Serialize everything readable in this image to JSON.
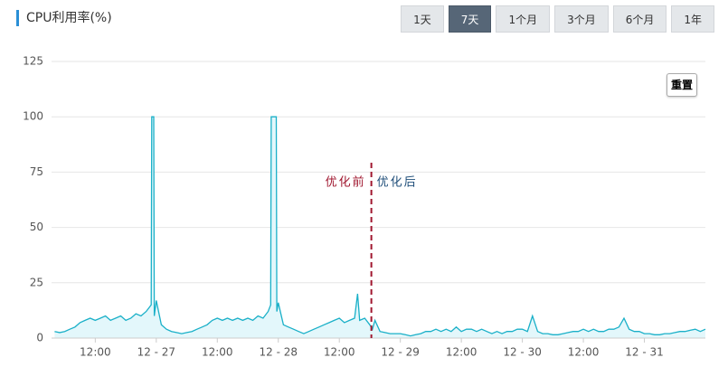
{
  "header": {
    "title": "CPU利用率(%)",
    "ranges": [
      "1天",
      "7天",
      "1个月",
      "3个月",
      "6个月",
      "1年"
    ],
    "active_range": 1,
    "reset": "重置"
  },
  "chart_data": {
    "type": "line",
    "color": "#1ab0c8",
    "fill": "#e3f7fb",
    "ylim": [
      0,
      125
    ],
    "yticks": [
      0,
      25,
      50,
      75,
      100,
      125
    ],
    "grid": true,
    "xlim": [
      -20.6,
      108
    ],
    "xticks": [
      {
        "value": -12,
        "label": "12:00"
      },
      {
        "value": 0,
        "label": "12 - 27"
      },
      {
        "value": 12,
        "label": "12:00"
      },
      {
        "value": 24,
        "label": "12 - 28"
      },
      {
        "value": 36,
        "label": "12:00"
      },
      {
        "value": 48,
        "label": "12 - 29"
      },
      {
        "value": 60,
        "label": "12:00"
      },
      {
        "value": 72,
        "label": "12 - 30"
      },
      {
        "value": 84,
        "label": "12:00"
      },
      {
        "value": 96,
        "label": "12 - 31"
      }
    ],
    "divider_x": 42.3,
    "annotations": [
      "优化前",
      "优化后"
    ],
    "x": [
      -20,
      -19,
      -18,
      -17,
      -16,
      -15,
      -14,
      -13,
      -12,
      -11,
      -10,
      -9,
      -8,
      -7,
      -6,
      -5,
      -4,
      -3,
      -2,
      -1,
      -0.9,
      -0.5,
      -0.4,
      0,
      1,
      2,
      3,
      4,
      5,
      6,
      7,
      8,
      9,
      10,
      11,
      12,
      13,
      14,
      15,
      16,
      17,
      18,
      19,
      20,
      21,
      22,
      22.5,
      22.6,
      23.6,
      23.7,
      24,
      25,
      26,
      27,
      28,
      29,
      30,
      31,
      32,
      33,
      34,
      35,
      36,
      37,
      38,
      39,
      39.6,
      40,
      41,
      42,
      42.5,
      43,
      44,
      45,
      46,
      47,
      48,
      49,
      50,
      51,
      52,
      53,
      54,
      55,
      56,
      57,
      58,
      59,
      60,
      61,
      62,
      63,
      64,
      65,
      66,
      67,
      68,
      69,
      70,
      71,
      72,
      73,
      74,
      75,
      76,
      77,
      78,
      79,
      80,
      81,
      82,
      83,
      84,
      85,
      86,
      87,
      88,
      89,
      90,
      91,
      92,
      93,
      94,
      95,
      96,
      97,
      98,
      99,
      100,
      101,
      102,
      103,
      104,
      105,
      106,
      107,
      108
    ],
    "values": [
      3,
      2.5,
      3,
      4,
      5,
      7,
      8,
      9,
      8,
      9,
      10,
      8,
      9,
      10,
      8,
      9,
      11,
      10,
      12,
      15,
      100,
      100,
      10,
      17,
      6,
      4,
      3,
      2.5,
      2,
      2.5,
      3,
      4,
      5,
      6,
      8,
      9,
      8,
      9,
      8,
      9,
      8,
      9,
      8,
      10,
      9,
      12,
      15,
      100,
      100,
      12,
      16,
      6,
      5,
      4,
      3,
      2,
      3,
      4,
      5,
      6,
      7,
      8,
      9,
      7,
      8,
      9,
      20,
      8,
      9,
      6,
      4,
      8,
      3,
      2.5,
      2,
      2,
      2,
      1.5,
      1,
      1.5,
      2,
      3,
      3,
      4,
      3,
      4,
      3,
      5,
      3,
      4,
      4,
      3,
      4,
      3,
      2,
      3,
      2,
      3,
      3,
      4,
      4,
      3,
      10,
      3,
      2,
      2,
      1.5,
      1.5,
      2,
      2.5,
      3,
      3,
      4,
      3,
      4,
      3,
      3,
      4,
      4,
      5,
      9,
      4,
      3,
      3,
      2,
      2,
      1.5,
      1.5,
      2,
      2,
      2.5,
      3,
      3,
      3.5,
      4,
      3,
      4
    ]
  }
}
